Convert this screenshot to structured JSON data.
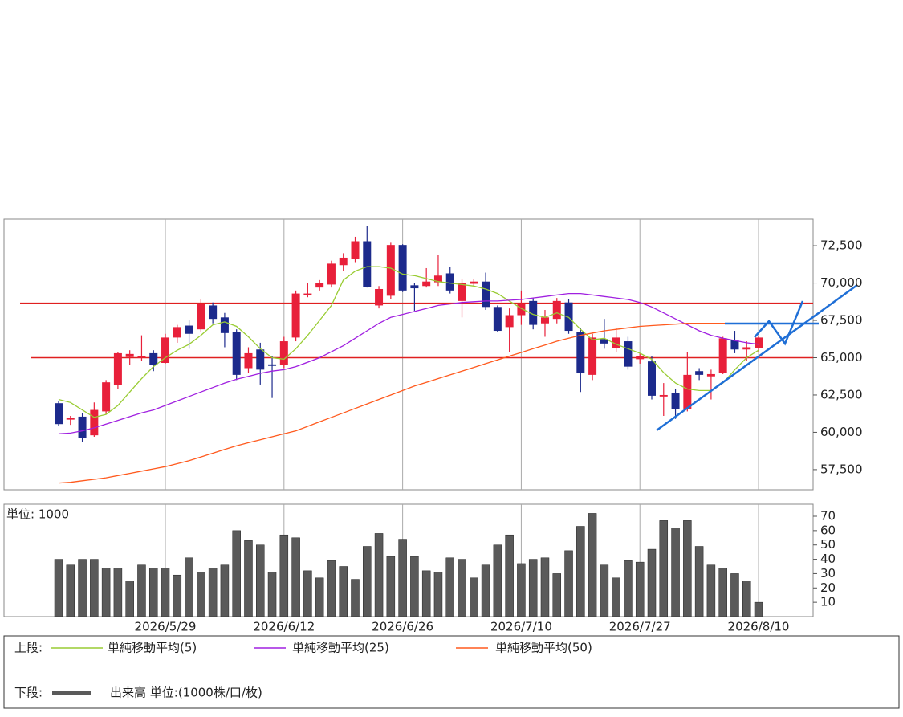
{
  "chart_data": [
    {
      "type": "candlestick",
      "legend_label": "上段:",
      "ylim": [
        56150,
        74280
      ],
      "yticks": [
        {
          "value": 57500,
          "label": "57,500"
        },
        {
          "value": 60000,
          "label": "60,000"
        },
        {
          "value": 62500,
          "label": "62,500"
        },
        {
          "value": 65000,
          "label": "65,000"
        },
        {
          "value": 67500,
          "label": "67,500"
        },
        {
          "value": 70000,
          "label": "70,000"
        },
        {
          "value": 72500,
          "label": "72,500"
        }
      ],
      "up_color": "#e8203a",
      "down_color": "#1c2a8c",
      "open": [
        61950,
        60850,
        61050,
        59800,
        61400,
        63150,
        65050,
        65000,
        65300,
        64650,
        66350,
        67150,
        66900,
        68500,
        67700,
        66700,
        64300,
        65550,
        64550,
        64500,
        66350,
        69200,
        69700,
        69900,
        71200,
        71600,
        72800,
        68500,
        69150,
        72550,
        69850,
        69800,
        70050,
        70650,
        68800,
        69950,
        70100,
        68400,
        67050,
        67850,
        68800,
        67300,
        67600,
        68700,
        66700,
        63850,
        66250,
        65650,
        66100,
        64900,
        64750,
        62400,
        62650,
        61550,
        64100,
        63750,
        64000,
        66200,
        65550,
        65650
      ],
      "high": [
        62100,
        61100,
        61300,
        62000,
        63500,
        65400,
        65500,
        66500,
        65500,
        66600,
        67200,
        67500,
        68900,
        68700,
        68000,
        66900,
        65700,
        66000,
        65100,
        66400,
        69500,
        70000,
        70200,
        71500,
        72000,
        73100,
        73800,
        69800,
        72700,
        72600,
        70000,
        71000,
        71900,
        71100,
        70300,
        70300,
        70700,
        68500,
        68300,
        69500,
        69000,
        68200,
        69000,
        68900,
        67000,
        66600,
        67600,
        67000,
        66400,
        65300,
        65100,
        63300,
        62900,
        65400,
        64300,
        64200,
        66400,
        66800,
        66100,
        66450
      ],
      "low": [
        60400,
        60500,
        59350,
        59700,
        61200,
        62900,
        64500,
        64800,
        64100,
        64600,
        66000,
        65600,
        66700,
        67300,
        65700,
        63500,
        64000,
        63200,
        62300,
        64300,
        66100,
        69050,
        69500,
        69700,
        70800,
        71400,
        69700,
        68300,
        68900,
        69400,
        68150,
        69700,
        69800,
        69300,
        67700,
        69800,
        68200,
        66700,
        65400,
        67200,
        66900,
        66400,
        67300,
        66600,
        62700,
        63500,
        65600,
        65400,
        64200,
        64600,
        62200,
        61100,
        60900,
        61400,
        63500,
        62200,
        63900,
        65300,
        64800,
        65400
      ],
      "close": [
        60550,
        60950,
        59600,
        61500,
        63350,
        65300,
        65250,
        65100,
        64500,
        66350,
        67050,
        66600,
        68600,
        67600,
        66650,
        63850,
        65300,
        64200,
        64450,
        66100,
        69300,
        69300,
        70000,
        71300,
        71700,
        72800,
        69750,
        69600,
        72550,
        69500,
        69650,
        70100,
        70500,
        69500,
        70000,
        70100,
        68400,
        66800,
        67850,
        68600,
        67200,
        67700,
        68800,
        66800,
        63950,
        66350,
        65950,
        66350,
        64400,
        65100,
        62450,
        62500,
        61550,
        63850,
        63850,
        63900,
        66300,
        65550,
        65700,
        66350
      ],
      "series": [
        {
          "name": "単純移動平均(5)",
          "color": "#99cc33",
          "values": [
            62200,
            62000,
            61500,
            61000,
            61200,
            61800,
            62700,
            63600,
            64400,
            65000,
            65500,
            65900,
            66500,
            67200,
            67400,
            67100,
            66400,
            65600,
            65000,
            64900,
            65600,
            66500,
            67500,
            68500,
            70200,
            70800,
            71100,
            71100,
            71000,
            70600,
            70500,
            70300,
            70100,
            70000,
            69900,
            69800,
            69600,
            69300,
            68800,
            68300,
            67900,
            67700,
            68000,
            67700,
            66900,
            66200,
            66300,
            65900,
            65600,
            65300,
            64900,
            64000,
            63300,
            62900,
            62800,
            62800,
            63300,
            64200,
            65000,
            65500
          ]
        },
        {
          "name": "単純移動平均(25)",
          "color": "#a020e0",
          "values": [
            59900,
            59950,
            60100,
            60300,
            60550,
            60800,
            61050,
            61300,
            61500,
            61800,
            62100,
            62400,
            62700,
            63000,
            63300,
            63550,
            63750,
            63950,
            64100,
            64200,
            64400,
            64700,
            65000,
            65400,
            65800,
            66300,
            66800,
            67300,
            67700,
            67900,
            68100,
            68300,
            68500,
            68600,
            68700,
            68750,
            68800,
            68800,
            68850,
            68900,
            69000,
            69100,
            69200,
            69300,
            69300,
            69200,
            69100,
            69000,
            68900,
            68700,
            68400,
            68000,
            67600,
            67200,
            66800,
            66500,
            66300,
            66150,
            66000,
            65900
          ]
        },
        {
          "name": "単純移動平均(50)",
          "color": "#ff5a1e",
          "values": [
            56600,
            56650,
            56750,
            56850,
            56950,
            57100,
            57250,
            57400,
            57550,
            57700,
            57900,
            58100,
            58350,
            58600,
            58850,
            59100,
            59300,
            59500,
            59700,
            59900,
            60100,
            60400,
            60700,
            61000,
            61300,
            61600,
            61900,
            62200,
            62500,
            62800,
            63100,
            63350,
            63600,
            63850,
            64100,
            64350,
            64600,
            64850,
            65100,
            65350,
            65600,
            65850,
            66100,
            66300,
            66500,
            66650,
            66800,
            66900,
            67000,
            67100,
            67150,
            67200,
            67250,
            67300,
            67300,
            67300,
            67300,
            67300,
            67300,
            67300
          ]
        }
      ],
      "levels": {
        "color": "#e02020",
        "values": [
          68650,
          65000
        ]
      }
    },
    {
      "type": "bar",
      "legend_label": "下段:",
      "unit_label": "単位: 1000",
      "ylim": [
        0,
        78.4
      ],
      "yticks": [
        10,
        20,
        30,
        40,
        50,
        60,
        70
      ],
      "categories": [
        null,
        null,
        null,
        null,
        null,
        null,
        null,
        null,
        null,
        "2026/5/29",
        null,
        null,
        null,
        null,
        null,
        null,
        null,
        null,
        null,
        "2026/6/12",
        null,
        null,
        null,
        null,
        null,
        null,
        null,
        null,
        null,
        "2026/6/26",
        null,
        null,
        null,
        null,
        null,
        null,
        null,
        null,
        null,
        "2026/7/10",
        null,
        null,
        null,
        null,
        null,
        null,
        null,
        null,
        null,
        "2026/7/27",
        null,
        null,
        null,
        null,
        null,
        null,
        null,
        null,
        null,
        "2026/8/10"
      ],
      "series": [
        {
          "name": "出来高 単位:(1000株/口/枚)",
          "color": "#5a5a5a",
          "values": [
            40,
            36,
            40,
            40,
            34,
            34,
            25,
            36,
            34,
            34,
            29,
            41,
            31,
            34,
            36,
            60,
            53,
            50,
            31,
            57,
            55,
            32,
            27,
            39,
            35,
            26,
            49,
            58,
            42,
            54,
            42,
            32,
            31,
            41,
            40,
            27,
            36,
            50,
            57,
            37,
            40,
            41,
            30,
            46,
            63,
            72,
            36,
            27,
            39,
            38,
            47,
            67,
            62,
            67,
            49,
            36,
            34,
            30,
            25,
            10
          ]
        }
      ]
    }
  ]
}
